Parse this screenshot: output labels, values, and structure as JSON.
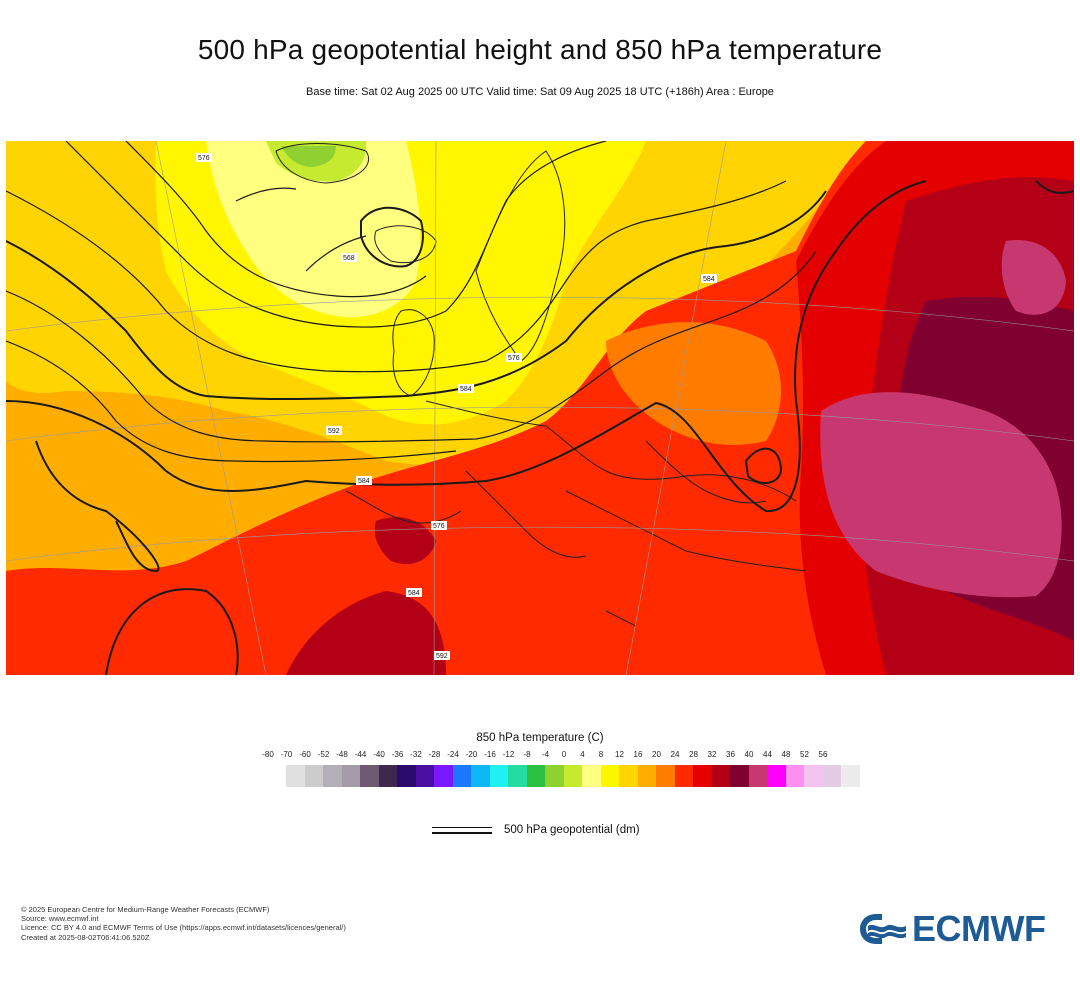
{
  "header": {
    "title": "500 hPa geopotential height and 850 hPa temperature",
    "subtitle": "Base time: Sat 02 Aug 2025 00 UTC Valid time: Sat 09 Aug 2025 18 UTC (+186h) Area : Europe"
  },
  "map": {
    "contour_labels": [
      "584",
      "592",
      "584",
      "576",
      "568",
      "576",
      "584",
      "576",
      "584",
      "592"
    ]
  },
  "legend": {
    "title": "850 hPa temperature (C)",
    "ticks": [
      "-80",
      "-70",
      "-60",
      "-52",
      "-48",
      "-44",
      "-40",
      "-36",
      "-32",
      "-28",
      "-24",
      "-20",
      "-16",
      "-12",
      "-8",
      "-4",
      "0",
      "4",
      "8",
      "12",
      "16",
      "20",
      "24",
      "28",
      "32",
      "36",
      "40",
      "44",
      "48",
      "52",
      "56"
    ],
    "colors": [
      "#e0e0e0",
      "#cccccc",
      "#b4b0b8",
      "#a49aa8",
      "#6e5a72",
      "#3e2850",
      "#2a0a6a",
      "#4a0fa0",
      "#7a18ff",
      "#1c78ff",
      "#11b8f8",
      "#20f0f0",
      "#24dca0",
      "#2cc040",
      "#90d030",
      "#c6ea30",
      "#ffff80",
      "#fff600",
      "#ffd400",
      "#ffae00",
      "#ff7c00",
      "#ff2a00",
      "#e40000",
      "#b40016",
      "#800030",
      "#c83870",
      "#ff00ff",
      "#ff90f0",
      "#f4c4f0",
      "#e4cce4",
      "#ececec"
    ],
    "geopotential_label": "500 hPa geopotential (dm)"
  },
  "footer": {
    "credits": [
      "© 2025 European Centre for Medium-Range Weather Forecasts (ECMWF)",
      "Source: www.ecmwf.int",
      "Licence: CC BY 4.0 and ECMWF Terms of Use (https://apps.ecmwf.int/datasets/licences/general/)",
      "Created at 2025-08-02T06:41:06.520Z"
    ],
    "logo_text": "ECMWF"
  }
}
